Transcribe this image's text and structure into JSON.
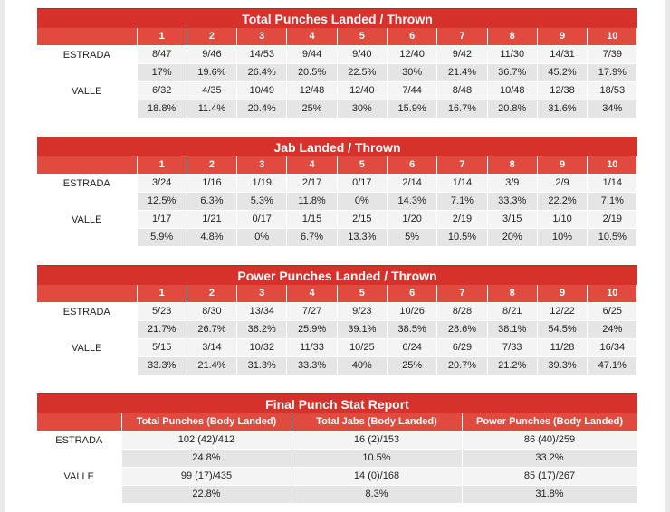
{
  "fighters": [
    "ESTRADA",
    "VALLE"
  ],
  "rounds": [
    "1",
    "2",
    "3",
    "4",
    "5",
    "6",
    "7",
    "8",
    "9",
    "10"
  ],
  "tables": [
    {
      "title": "Total Punches Landed / Thrown",
      "estrada": {
        "landed": [
          "8/47",
          "9/46",
          "14/53",
          "9/44",
          "9/40",
          "12/40",
          "9/42",
          "11/30",
          "14/31",
          "7/39"
        ],
        "pct": [
          "17%",
          "19.6%",
          "26.4%",
          "20.5%",
          "22.5%",
          "30%",
          "21.4%",
          "36.7%",
          "45.2%",
          "17.9%"
        ]
      },
      "valle": {
        "landed": [
          "6/32",
          "4/35",
          "10/49",
          "12/48",
          "12/40",
          "7/44",
          "8/48",
          "10/48",
          "12/38",
          "18/53"
        ],
        "pct": [
          "18.8%",
          "11.4%",
          "20.4%",
          "25%",
          "30%",
          "15.9%",
          "16.7%",
          "20.8%",
          "31.6%",
          "34%"
        ]
      }
    },
    {
      "title": "Jab Landed / Thrown",
      "estrada": {
        "landed": [
          "3/24",
          "1/16",
          "1/19",
          "2/17",
          "0/17",
          "2/14",
          "1/14",
          "3/9",
          "2/9",
          "1/14"
        ],
        "pct": [
          "12.5%",
          "6.3%",
          "5.3%",
          "11.8%",
          "0%",
          "14.3%",
          "7.1%",
          "33.3%",
          "22.2%",
          "7.1%"
        ]
      },
      "valle": {
        "landed": [
          "1/17",
          "1/21",
          "0/17",
          "1/15",
          "2/15",
          "1/20",
          "2/19",
          "3/15",
          "1/10",
          "2/19"
        ],
        "pct": [
          "5.9%",
          "4.8%",
          "0%",
          "6.7%",
          "13.3%",
          "5%",
          "10.5%",
          "20%",
          "10%",
          "10.5%"
        ]
      }
    },
    {
      "title": "Power Punches Landed / Thrown",
      "estrada": {
        "landed": [
          "5/23",
          "8/30",
          "13/34",
          "7/27",
          "9/23",
          "10/26",
          "8/28",
          "8/21",
          "12/22",
          "6/25"
        ],
        "pct": [
          "21.7%",
          "26.7%",
          "38.2%",
          "25.9%",
          "39.1%",
          "38.5%",
          "28.6%",
          "38.1%",
          "54.5%",
          "24%"
        ]
      },
      "valle": {
        "landed": [
          "5/15",
          "3/14",
          "10/32",
          "11/33",
          "10/25",
          "6/24",
          "6/29",
          "7/33",
          "11/28",
          "16/34"
        ],
        "pct": [
          "33.3%",
          "21.4%",
          "31.3%",
          "33.3%",
          "40%",
          "25%",
          "20.7%",
          "21.2%",
          "39.3%",
          "47.1%"
        ]
      }
    }
  ],
  "final": {
    "title": "Final Punch Stat Report",
    "headers": [
      "Total Punches (Body Landed)",
      "Total Jabs (Body Landed)",
      "Power Punches (Body Landed)"
    ],
    "estrada": {
      "values": [
        "102 (42)/412",
        "16 (2)/153",
        "86 (40)/259"
      ],
      "pct": [
        "24.8%",
        "10.5%",
        "33.2%"
      ]
    },
    "valle": {
      "values": [
        "99 (17)/435",
        "14 (0)/168",
        "85 (17)/267"
      ],
      "pct": [
        "22.8%",
        "8.3%",
        "31.8%"
      ]
    }
  }
}
